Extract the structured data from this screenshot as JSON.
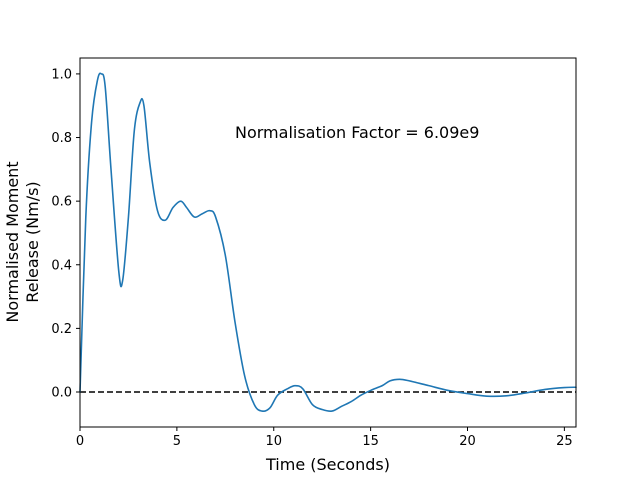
{
  "chart_data": {
    "type": "line",
    "title": "",
    "xlabel": "Time (Seconds)",
    "ylabel_lines": [
      "Normalised Moment",
      "Release (Nm/s)"
    ],
    "xlim": [
      0,
      25.6
    ],
    "ylim": [
      -0.11,
      1.05
    ],
    "xticks": [
      0,
      5,
      10,
      15,
      20,
      25
    ],
    "yticks": [
      0.0,
      0.2,
      0.4,
      0.6,
      0.8,
      1.0
    ],
    "xtick_labels": [
      "0",
      "5",
      "10",
      "15",
      "20",
      "25"
    ],
    "ytick_labels": [
      "0.0",
      "0.2",
      "0.4",
      "0.6",
      "0.8",
      "1.0"
    ],
    "annotation": {
      "text": "Normalisation Factor = 6.09e9",
      "x": 8.0,
      "y": 0.8
    },
    "reference_line": {
      "y": 0.0,
      "style": "dashed",
      "color": "#000000"
    },
    "grid": false,
    "series": [
      {
        "color": "#1f77b4",
        "x": [
          0,
          0.3,
          0.6,
          0.9,
          1.1,
          1.3,
          1.6,
          2.0,
          2.2,
          2.5,
          2.8,
          3.1,
          3.3,
          3.6,
          4.0,
          4.4,
          4.8,
          5.2,
          5.5,
          5.9,
          6.3,
          6.7,
          7.0,
          7.5,
          8.0,
          8.5,
          9.0,
          9.4,
          9.8,
          10.2,
          10.7,
          11.1,
          11.5,
          12.0,
          12.5,
          13.0,
          13.5,
          14.0,
          14.5,
          15.0,
          15.6,
          16.0,
          16.5,
          17.0,
          18.0,
          19.0,
          20.0,
          21.0,
          22.0,
          23.0,
          24.0,
          25.0,
          25.6
        ],
        "y": [
          0.0,
          0.55,
          0.85,
          0.98,
          1.0,
          0.96,
          0.7,
          0.38,
          0.35,
          0.55,
          0.82,
          0.91,
          0.9,
          0.72,
          0.57,
          0.54,
          0.58,
          0.6,
          0.58,
          0.55,
          0.56,
          0.57,
          0.55,
          0.43,
          0.22,
          0.05,
          -0.04,
          -0.06,
          -0.05,
          -0.01,
          0.01,
          0.02,
          0.01,
          -0.04,
          -0.055,
          -0.06,
          -0.045,
          -0.03,
          -0.01,
          0.005,
          0.02,
          0.035,
          0.04,
          0.035,
          0.02,
          0.005,
          -0.005,
          -0.013,
          -0.012,
          -0.003,
          0.008,
          0.014,
          0.015
        ]
      }
    ]
  }
}
